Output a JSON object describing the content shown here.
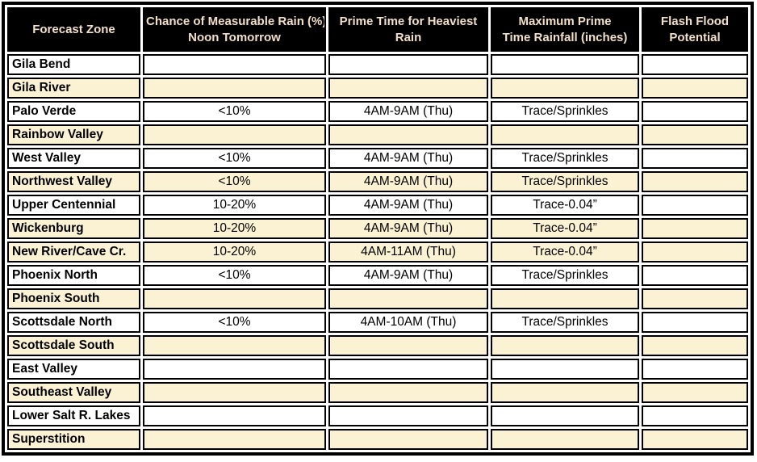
{
  "table": {
    "header": [
      {
        "line1": "Forecast Zone",
        "line2": ""
      },
      {
        "line1": "Chance of Measurable Rain (%)",
        "line2": "Noon Tomorrow"
      },
      {
        "line1": "Prime Time for Heaviest",
        "line2": "Rain"
      },
      {
        "line1": "Maximum Prime",
        "line2": "Time Rainfall (inches)"
      },
      {
        "line1": "Flash Flood",
        "line2": "Potential"
      }
    ],
    "rows": [
      {
        "zone": "Gila Bend",
        "chance": "",
        "prime_time": "",
        "max_rainfall": "",
        "flash_flood": "",
        "shade": "white"
      },
      {
        "zone": "Gila River",
        "chance": "",
        "prime_time": "",
        "max_rainfall": "",
        "flash_flood": "",
        "shade": "cream"
      },
      {
        "zone": "Palo Verde",
        "chance": "<10%",
        "prime_time": "4AM-9AM (Thu)",
        "max_rainfall": "Trace/Sprinkles",
        "flash_flood": "",
        "shade": "white"
      },
      {
        "zone": "Rainbow Valley",
        "chance": "",
        "prime_time": "",
        "max_rainfall": "",
        "flash_flood": "",
        "shade": "cream"
      },
      {
        "zone": "West Valley",
        "chance": "<10%",
        "prime_time": "4AM-9AM (Thu)",
        "max_rainfall": "Trace/Sprinkles",
        "flash_flood": "",
        "shade": "white"
      },
      {
        "zone": "Northwest Valley",
        "chance": "<10%",
        "prime_time": "4AM-9AM (Thu)",
        "max_rainfall": "Trace/Sprinkles",
        "flash_flood": "",
        "shade": "cream"
      },
      {
        "zone": "Upper Centennial",
        "chance": "10-20%",
        "prime_time": "4AM-9AM (Thu)",
        "max_rainfall": "Trace-0.04”",
        "flash_flood": "",
        "shade": "white"
      },
      {
        "zone": "Wickenburg",
        "chance": "10-20%",
        "prime_time": "4AM-9AM (Thu)",
        "max_rainfall": "Trace-0.04”",
        "flash_flood": "",
        "shade": "cream"
      },
      {
        "zone": "New River/Cave Cr.",
        "chance": "10-20%",
        "prime_time": "4AM-11AM (Thu)",
        "max_rainfall": "Trace-0.04”",
        "flash_flood": "",
        "shade": "cream"
      },
      {
        "zone": "Phoenix North",
        "chance": "<10%",
        "prime_time": "4AM-9AM (Thu)",
        "max_rainfall": "Trace/Sprinkles",
        "flash_flood": "",
        "shade": "white"
      },
      {
        "zone": "Phoenix South",
        "chance": "",
        "prime_time": "",
        "max_rainfall": "",
        "flash_flood": "",
        "shade": "cream"
      },
      {
        "zone": "Scottsdale North",
        "chance": "<10%",
        "prime_time": "4AM-10AM (Thu)",
        "max_rainfall": "Trace/Sprinkles",
        "flash_flood": "",
        "shade": "white"
      },
      {
        "zone": "Scottsdale South",
        "chance": "",
        "prime_time": "",
        "max_rainfall": "",
        "flash_flood": "",
        "shade": "cream"
      },
      {
        "zone": "East Valley",
        "chance": "",
        "prime_time": "",
        "max_rainfall": "",
        "flash_flood": "",
        "shade": "white"
      },
      {
        "zone": "Southeast Valley",
        "chance": "",
        "prime_time": "",
        "max_rainfall": "",
        "flash_flood": "",
        "shade": "cream"
      },
      {
        "zone": "Lower Salt R. Lakes",
        "chance": "",
        "prime_time": "",
        "max_rainfall": "",
        "flash_flood": "",
        "shade": "white"
      },
      {
        "zone": "Superstition",
        "chance": "",
        "prime_time": "",
        "max_rainfall": "",
        "flash_flood": "",
        "shade": "cream"
      }
    ],
    "colors": {
      "header_bg": "#000000",
      "header_text": "#f2dfc7",
      "row_highlight": "#fbf2d4",
      "row_plain": "#ffffff",
      "border": "#000000"
    }
  }
}
